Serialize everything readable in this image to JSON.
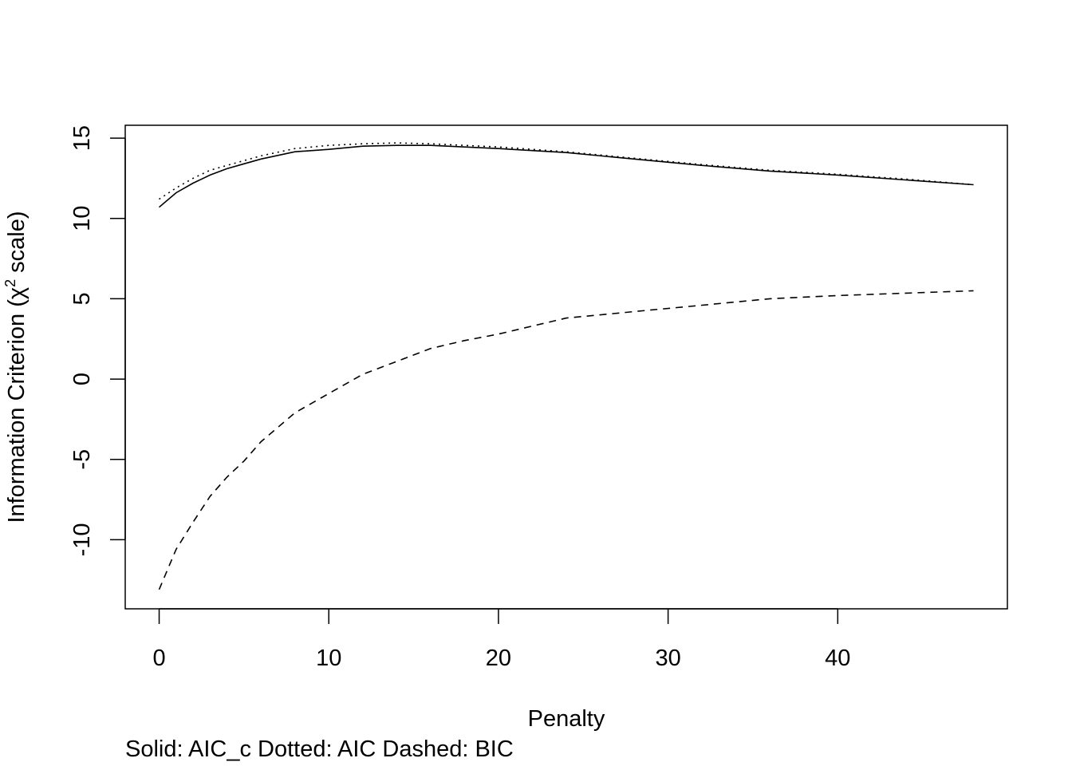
{
  "chart_data": {
    "type": "line",
    "xlabel": "Penalty",
    "ylabel_main": "Information Criterion (",
    "ylabel_chi": "χ",
    "ylabel_sup": "2",
    "ylabel_rest": " scale)",
    "caption": "Solid: AIC_c  Dotted: AIC  Dashed: BIC",
    "xlim": [
      -2,
      50
    ],
    "ylim": [
      -14.3,
      15.8
    ],
    "xticks": [
      0,
      10,
      20,
      30,
      40
    ],
    "yticks": [
      -10,
      -5,
      0,
      5,
      10,
      15
    ],
    "x": [
      0,
      1,
      2,
      3,
      4,
      5,
      6,
      8,
      10,
      12,
      14,
      16,
      18,
      20,
      24,
      28,
      32,
      36,
      40,
      44,
      48
    ],
    "series": [
      {
        "style": "solid",
        "values": [
          10.7,
          11.6,
          12.2,
          12.7,
          13.1,
          13.4,
          13.7,
          14.15,
          14.3,
          14.5,
          14.55,
          14.55,
          14.45,
          14.35,
          14.1,
          13.7,
          13.3,
          12.95,
          12.7,
          12.4,
          12.1
        ]
      },
      {
        "style": "dotted",
        "values": [
          11.2,
          11.9,
          12.5,
          13.0,
          13.3,
          13.6,
          13.9,
          14.35,
          14.55,
          14.65,
          14.7,
          14.65,
          14.55,
          14.45,
          14.15,
          13.75,
          13.35,
          13.0,
          12.75,
          12.45,
          12.1
        ]
      },
      {
        "style": "dashed",
        "values": [
          -13.1,
          -10.6,
          -8.9,
          -7.3,
          -6.1,
          -5.1,
          -3.9,
          -2.1,
          -0.9,
          0.3,
          1.1,
          1.9,
          2.4,
          2.8,
          3.8,
          4.2,
          4.6,
          5.0,
          5.2,
          5.35,
          5.5
        ]
      }
    ],
    "grid": false,
    "legend": "none"
  }
}
